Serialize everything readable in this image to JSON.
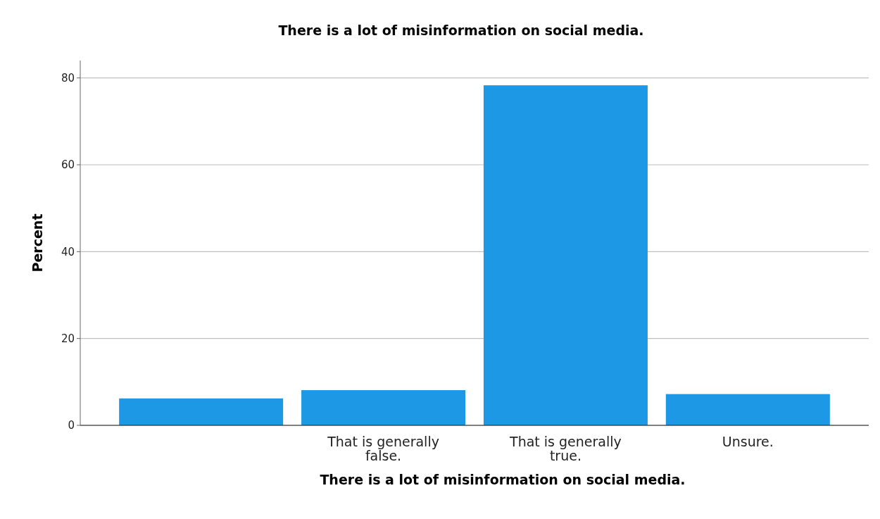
{
  "chart_data": {
    "type": "bar",
    "title": "There is a lot of misinformation on social media.",
    "xlabel": "There is a lot of misinformation on social media.",
    "ylabel": "Percent",
    "categories": [
      null,
      "That is generally false.",
      "That is generally true.",
      "Unsure."
    ],
    "values": [
      6.2,
      8.1,
      78.3,
      7.2
    ],
    "color": "#1c98e4",
    "ylim": [
      0,
      84
    ],
    "yticks": [
      0,
      20,
      40,
      60,
      80
    ],
    "grid": "y"
  }
}
